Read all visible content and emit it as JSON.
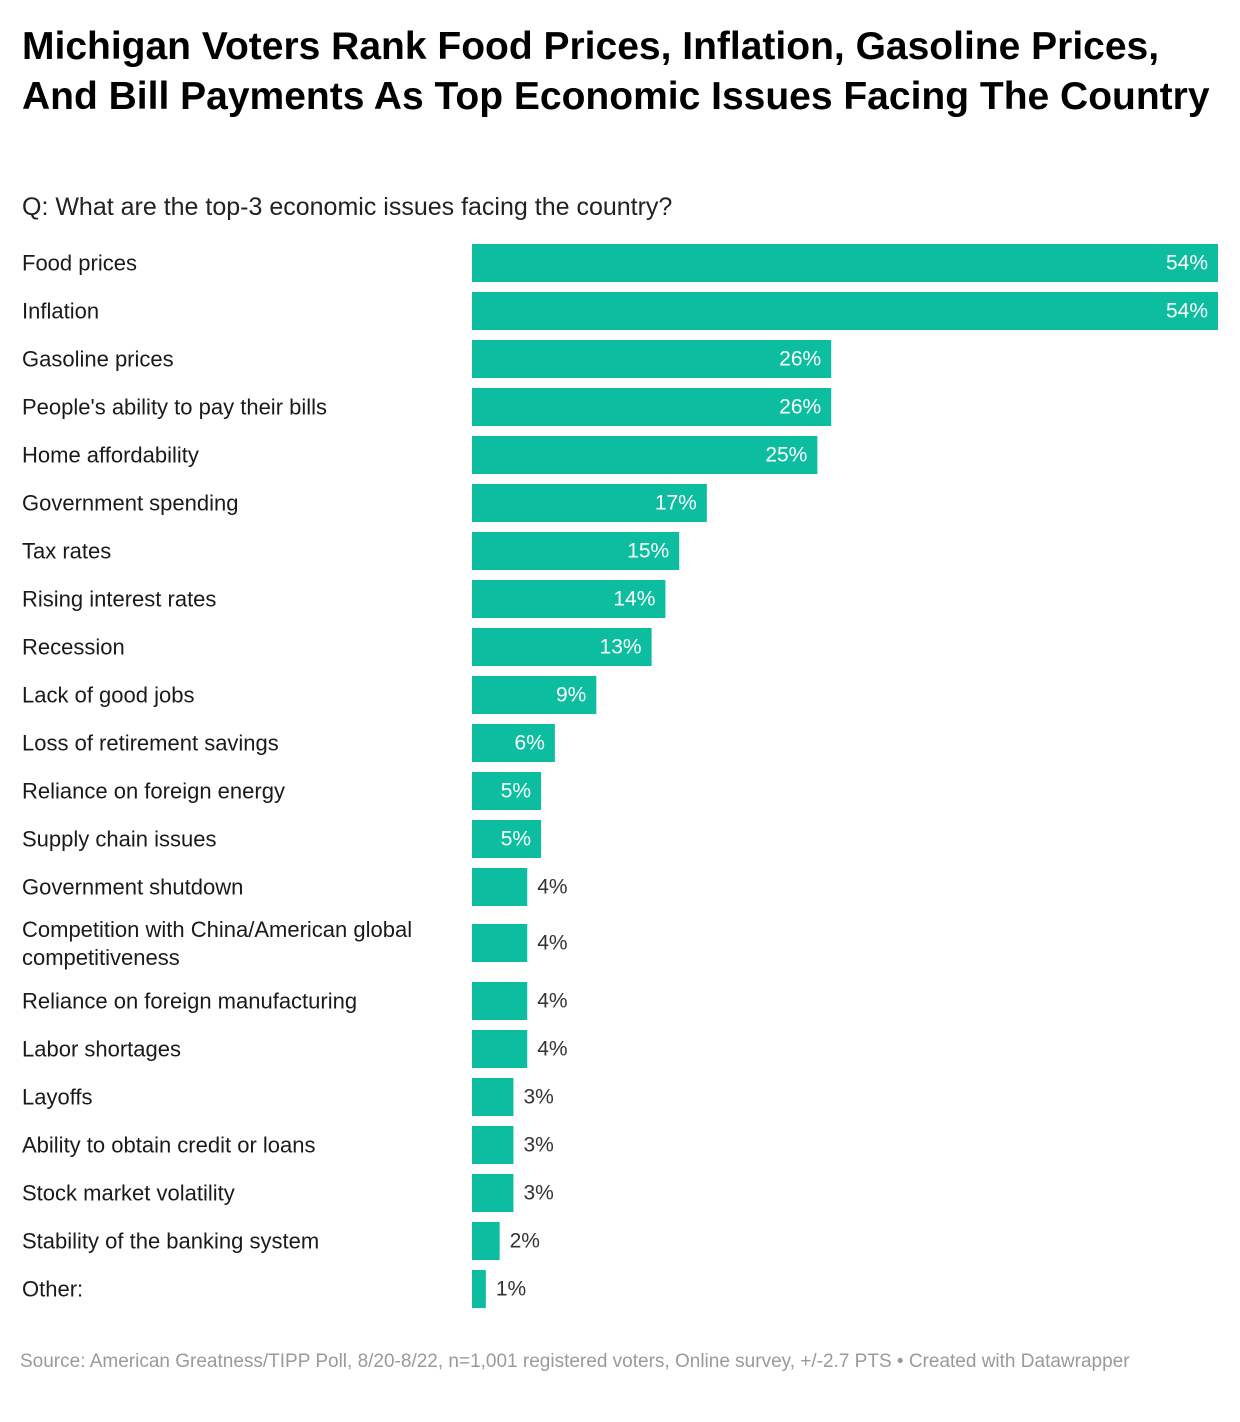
{
  "title": "Michigan Voters Rank Food Prices, Inflation, Gasoline Prices, And Bill Payments As Top Economic Issues Facing The Country",
  "subtitle": "Q: What are the top-3 economic issues facing the country?",
  "footer": "Source: American Greatness/TIPP Poll, 8/20-8/22, n=1,001 registered voters, Online survey, +/-2.7 PTS • Created with Datawrapper",
  "colors": {
    "bar": "#0cbda0",
    "label_inside": "#ffffff",
    "label_outside": "#333333"
  },
  "chart_data": {
    "type": "bar",
    "orientation": "horizontal",
    "title": "Michigan Voters Rank Food Prices, Inflation, Gasoline Prices, And Bill Payments As Top Economic Issues Facing The Country",
    "xlabel": "",
    "ylabel": "",
    "unit": "%",
    "xlim": [
      0,
      54
    ],
    "categories": [
      "Food prices",
      "Inflation",
      "Gasoline prices",
      "People's ability to pay their bills",
      "Home affordability",
      "Government spending",
      "Tax rates",
      "Rising interest rates",
      "Recession",
      "Lack of good jobs",
      "Loss of retirement savings",
      "Reliance on foreign energy",
      "Supply chain issues",
      "Government shutdown",
      "Competition with China/American global competitiveness",
      "Reliance on foreign manufacturing",
      "Labor shortages",
      "Layoffs",
      "Ability to obtain credit or loans",
      "Stock market volatility",
      "Stability of the banking system",
      "Other:"
    ],
    "values": [
      54,
      54,
      26,
      26,
      25,
      17,
      15,
      14,
      13,
      9,
      6,
      5,
      5,
      4,
      4,
      4,
      4,
      3,
      3,
      3,
      2,
      1
    ],
    "value_labels": [
      "54%",
      "54%",
      "26%",
      "26%",
      "25%",
      "17%",
      "15%",
      "14%",
      "13%",
      "9%",
      "6%",
      "5%",
      "5%",
      "4%",
      "4%",
      "4%",
      "4%",
      "3%",
      "3%",
      "3%",
      "2%",
      "1%"
    ]
  }
}
